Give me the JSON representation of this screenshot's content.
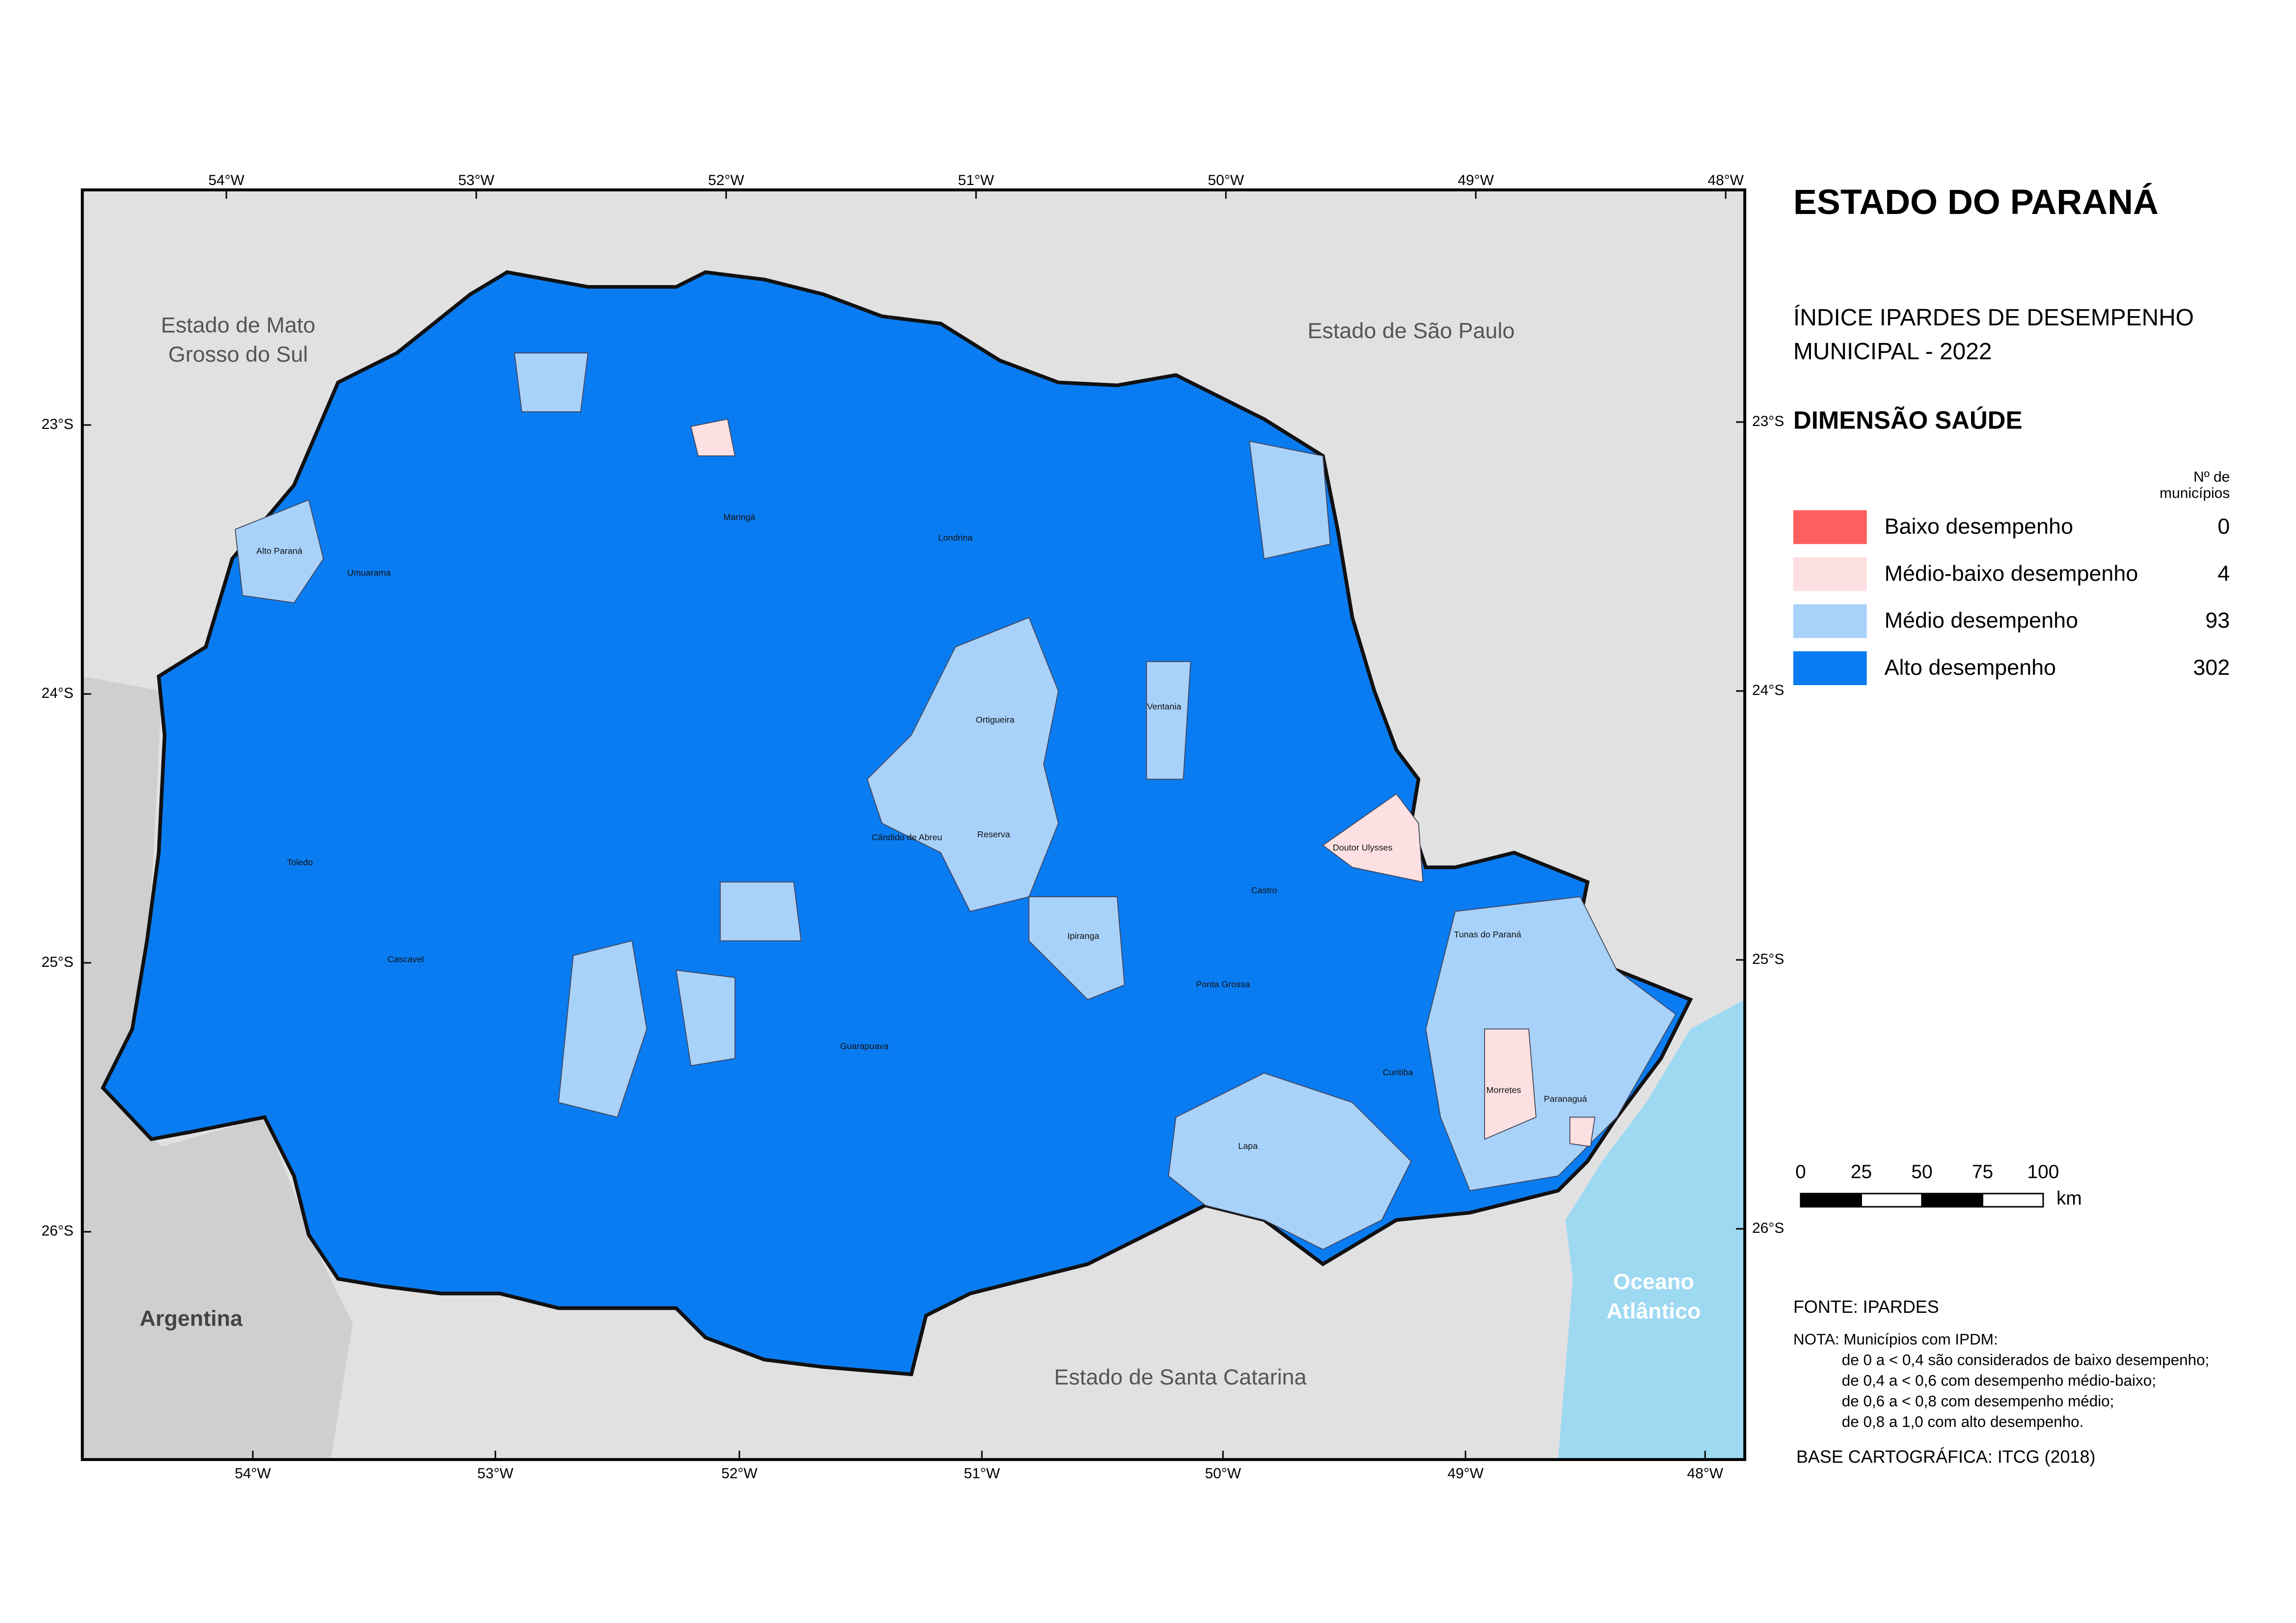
{
  "title": "ESTADO DO PARANÁ",
  "subtitle": [
    "ÍNDICE IPARDES DE DESEMPENHO",
    "MUNICIPAL - 2022"
  ],
  "dimension": "DIMENSÃO SAÚDE",
  "legend": {
    "header": [
      "Nº de",
      "municípios"
    ],
    "items": [
      {
        "label": "Baixo desempenho",
        "count": 0,
        "color": "#ff5f5f"
      },
      {
        "label": "Médio-baixo desempenho",
        "count": 4,
        "color": "#fde0e2"
      },
      {
        "label": "Médio desempenho",
        "count": 93,
        "color": "#a9d2fb"
      },
      {
        "label": "Alto desempenho",
        "count": 302,
        "color": "#0a7cf2"
      }
    ]
  },
  "scale": {
    "ticks": [
      0,
      25,
      50,
      75,
      100
    ],
    "unit": "km"
  },
  "regions": [
    "Estado de Mato",
    "Grosso do Sul",
    "Estado de São Paulo",
    "Argentina",
    "Estado de Santa Catarina",
    "Oceano",
    "Atlântico"
  ],
  "municipalities": [
    "Ortigueira",
    "Reserva",
    "Cândido de Abreu",
    "Lapa",
    "Curitiba",
    "Paranaguá",
    "Morretes",
    "Doutor Ulysses",
    "Guarapuava",
    "Cascavel",
    "Maringá",
    "Londrina",
    "Ponta Grossa",
    "Castro",
    "Umuarama",
    "Toledo",
    "Alto Paraná",
    "Tunas do Paraná",
    "Ventania",
    "Ipiranga"
  ],
  "axes": {
    "top": [
      "54°W",
      "53°W",
      "52°W",
      "51°W",
      "50°W",
      "49°W",
      "48°W"
    ],
    "bottom": [
      "54°W",
      "53°W",
      "52°W",
      "51°W",
      "50°W",
      "49°W",
      "48°W"
    ],
    "left": [
      "23°S",
      "24°S",
      "25°S",
      "26°S"
    ],
    "right": [
      "23°S",
      "24°S",
      "25°S",
      "26°S"
    ]
  },
  "source": "FONTE: IPARDES",
  "note": [
    "NOTA: Municípios com IPDM:",
    "de 0 a < 0,4 são considerados de baixo desempenho;",
    "de 0,4 a < 0,6 com desempenho médio-baixo;",
    "de 0,6 a < 0,8 com desempenho médio;",
    "de 0,8 a 1,0 com alto desempenho."
  ],
  "base": "BASE CARTOGRÁFICA: ITCG (2018)"
}
